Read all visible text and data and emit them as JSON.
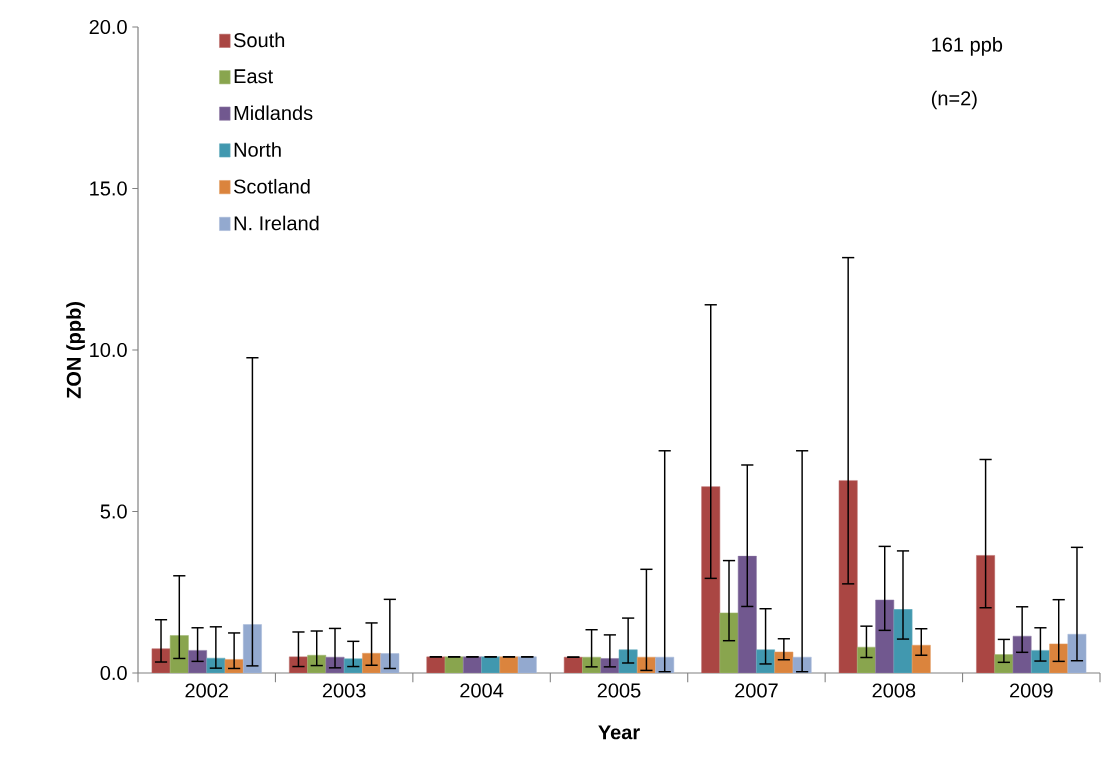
{
  "chart_data": {
    "type": "bar",
    "xlabel": "Year",
    "ylabel": "ZON (ppb)",
    "categories": [
      "2002",
      "2003",
      "2004",
      "2005",
      "2007",
      "2008",
      "2009"
    ],
    "ylim": [
      0,
      20
    ],
    "yticks": [
      {
        "value": 0,
        "label": "0.0"
      },
      {
        "value": 5,
        "label": "5.0"
      },
      {
        "value": 10,
        "label": "10.0"
      },
      {
        "value": 15,
        "label": "15.0"
      },
      {
        "value": 20,
        "label": "20.0"
      }
    ],
    "legend": "top left",
    "grid": false,
    "annotations": [
      "161 ppb",
      "(n=2)"
    ],
    "series": [
      {
        "name": "South",
        "color": "#aa4643",
        "values": [
          0.75,
          0.5,
          0.5,
          0.49,
          5.77,
          5.96,
          3.64
        ],
        "errors": [
          [
            0.34,
            1.65
          ],
          [
            0.2,
            1.27
          ],
          [
            0.5,
            0.5
          ],
          [
            0.49,
            0.49
          ],
          [
            2.93,
            11.4
          ],
          [
            2.76,
            12.86
          ],
          [
            2.02,
            6.61
          ]
        ]
      },
      {
        "name": "East",
        "color": "#89a54e",
        "values": [
          1.16,
          0.55,
          0.5,
          0.49,
          1.86,
          0.8,
          0.57
        ],
        "errors": [
          [
            0.45,
            3.01
          ],
          [
            0.23,
            1.3
          ],
          [
            0.5,
            0.5
          ],
          [
            0.19,
            1.34
          ],
          [
            1.0,
            3.48
          ],
          [
            0.48,
            1.45
          ],
          [
            0.33,
            1.04
          ]
        ]
      },
      {
        "name": "Midlands",
        "color": "#71588f",
        "values": [
          0.7,
          0.49,
          0.5,
          0.45,
          3.62,
          2.26,
          1.14
        ],
        "errors": [
          [
            0.36,
            1.4
          ],
          [
            0.16,
            1.38
          ],
          [
            0.5,
            0.5
          ],
          [
            0.19,
            1.18
          ],
          [
            2.06,
            6.44
          ],
          [
            1.32,
            3.92
          ],
          [
            0.64,
            2.05
          ]
        ]
      },
      {
        "name": "North",
        "color": "#4198af",
        "values": [
          0.46,
          0.44,
          0.5,
          0.72,
          0.72,
          1.97,
          0.7
        ],
        "errors": [
          [
            0.15,
            1.43
          ],
          [
            0.2,
            0.98
          ],
          [
            0.5,
            0.5
          ],
          [
            0.31,
            1.7
          ],
          [
            0.28,
            1.99
          ],
          [
            1.05,
            3.78
          ],
          [
            0.37,
            1.4
          ]
        ]
      },
      {
        "name": "Scotland",
        "color": "#db843d",
        "values": [
          0.42,
          0.61,
          0.5,
          0.49,
          0.65,
          0.86,
          0.9
        ],
        "errors": [
          [
            0.14,
            1.24
          ],
          [
            0.24,
            1.55
          ],
          [
            0.5,
            0.5
          ],
          [
            0.08,
            3.21
          ],
          [
            0.41,
            1.06
          ],
          [
            0.55,
            1.37
          ],
          [
            0.36,
            2.27
          ]
        ]
      },
      {
        "name": "N. Ireland",
        "color": "#93a9cf",
        "values": [
          1.5,
          0.6,
          0.5,
          0.49,
          0.49,
          null,
          1.2
        ],
        "errors": [
          [
            0.22,
            9.76
          ],
          [
            0.14,
            2.28
          ],
          [
            0.5,
            0.5
          ],
          [
            0.04,
            6.88
          ],
          [
            0.04,
            6.88
          ],
          null,
          [
            0.38,
            3.89
          ]
        ]
      }
    ]
  }
}
